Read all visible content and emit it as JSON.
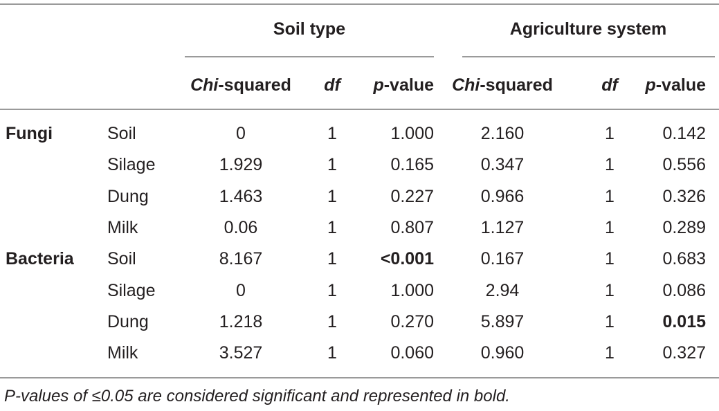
{
  "table": {
    "group_headers": [
      "Soil type",
      "Agriculture system"
    ],
    "columns": [
      "Chi-squared",
      "df",
      "p-value",
      "Chi-squared",
      "df",
      "p-value"
    ],
    "groups": [
      {
        "label": "Fungi",
        "rows": [
          [
            "Soil",
            "0",
            "1",
            "1.000",
            "2.160",
            "1",
            "0.142"
          ],
          [
            "Silage",
            "1.929",
            "1",
            "0.165",
            "0.347",
            "1",
            "0.556"
          ],
          [
            "Dung",
            "1.463",
            "1",
            "0.227",
            "0.966",
            "1",
            "0.326"
          ],
          [
            "Milk",
            "0.06",
            "1",
            "0.807",
            "1.127",
            "1",
            "0.289"
          ]
        ]
      },
      {
        "label": "Bacteria",
        "rows": [
          [
            "Soil",
            "8.167",
            "1",
            {
              "text": "<0.001",
              "bold": true
            },
            "0.167",
            "1",
            "0.683"
          ],
          [
            "Silage",
            "0",
            "1",
            "1.000",
            "2.94",
            "1",
            "0.086"
          ],
          [
            "Dung",
            "1.218",
            "1",
            "0.270",
            "5.897",
            "1",
            {
              "text": "0.015",
              "bold": true
            }
          ],
          [
            "Milk",
            "3.527",
            "1",
            "0.060",
            "0.960",
            "1",
            "0.327"
          ]
        ]
      }
    ]
  },
  "footnote": "P-values of ≤0.05 are considered significant and represented in bold."
}
